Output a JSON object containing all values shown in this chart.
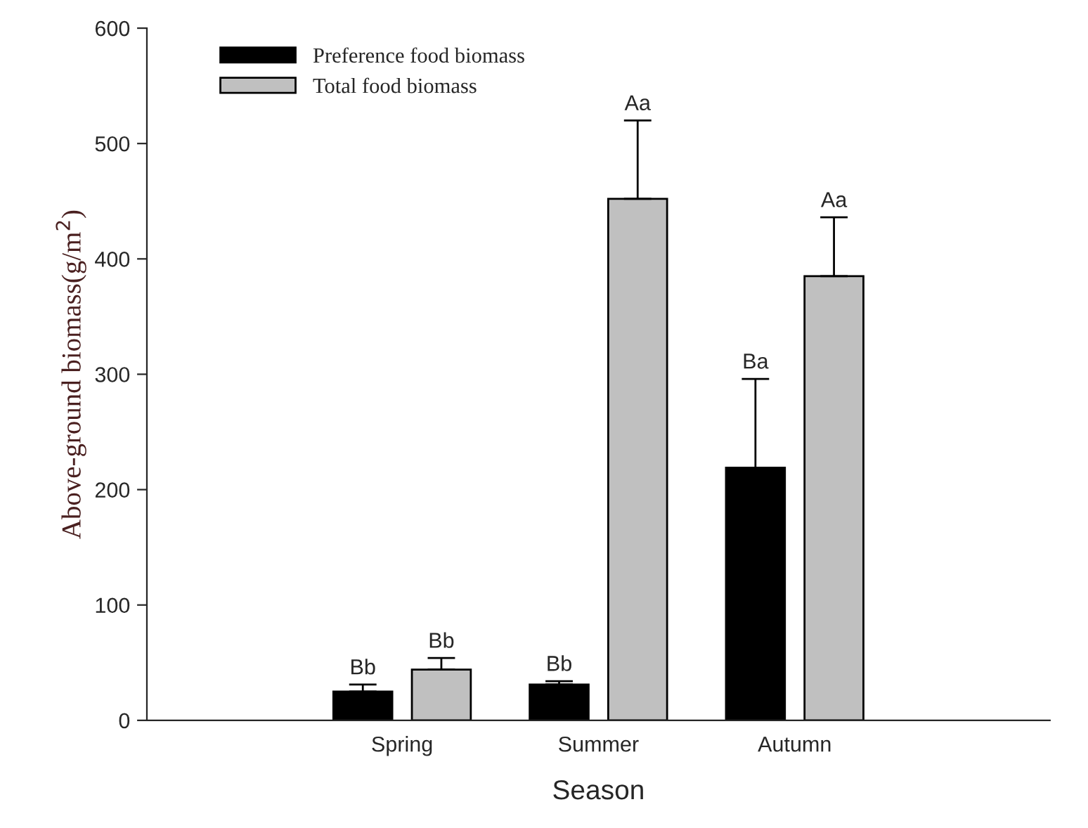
{
  "chart_data": {
    "type": "bar",
    "xlabel": "Season",
    "ylabel": "Above-ground biomass(g/m$^{2}$)",
    "categories": [
      "Spring",
      "Summer",
      "Autumn"
    ],
    "series": [
      {
        "name": "Preference food biomass",
        "color": "#000000",
        "values": [
          25,
          31,
          219
        ],
        "errors": [
          [
            25,
            31
          ],
          [
            31,
            34
          ],
          [
            219,
            296
          ]
        ]
      },
      {
        "name": "Total food biomass",
        "color": "#c0c0c0",
        "values": [
          44,
          452,
          385
        ],
        "errors": [
          [
            44,
            54
          ],
          [
            452,
            520
          ],
          [
            385,
            436
          ]
        ]
      }
    ],
    "ylim": [
      0,
      600
    ],
    "yticks": [
      0,
      100,
      200,
      300,
      400,
      500,
      600
    ],
    "legend": "top left",
    "grid": false,
    "annotations": [
      "Bb",
      "Bb",
      "Bb",
      "Aa",
      "Ba",
      "Aa"
    ]
  }
}
